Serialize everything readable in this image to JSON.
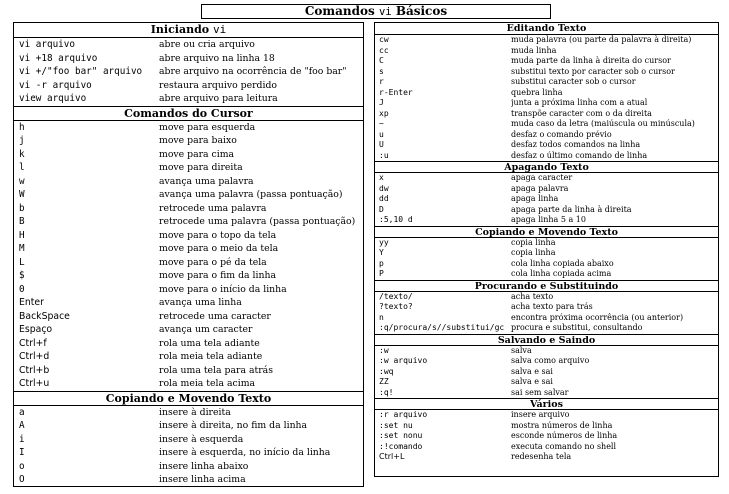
{
  "title": {
    "text": "Comandos",
    "mono": "vi",
    "rest": "Básicos"
  },
  "left_sections": [
    {
      "heading": "Iniciando",
      "heading_mono": "vi",
      "rows": [
        {
          "cmd": "vi arquivo",
          "desc": "abre ou cria arquivo"
        },
        {
          "cmd": "vi +18 arquivo",
          "desc": "abre arquivo na linha 18"
        },
        {
          "cmd": "vi +/\"foo bar\" arquivo",
          "desc": "abre arquivo na ocorrência de \"foo bar\""
        },
        {
          "cmd": "vi -r arquivo",
          "desc": "restaura arquivo perdido"
        },
        {
          "cmd": "view arquivo",
          "desc": "abre arquivo para leitura"
        }
      ]
    },
    {
      "heading": "Comandos do Cursor",
      "rows": [
        {
          "cmd": "h",
          "desc": "move para esquerda"
        },
        {
          "cmd": "j",
          "desc": "move para baixo"
        },
        {
          "cmd": "k",
          "desc": "move para cima"
        },
        {
          "cmd": "l",
          "desc": "move para direita"
        },
        {
          "cmd": "w",
          "desc": "avança uma palavra"
        },
        {
          "cmd": "W",
          "desc": "avança uma palavra (passa pontuação)"
        },
        {
          "cmd": "b",
          "desc": "retrocede uma palavra"
        },
        {
          "cmd": "B",
          "desc": "retrocede uma palavra (passa pontuação)"
        },
        {
          "cmd": "H",
          "desc": "move para o topo da tela"
        },
        {
          "cmd": "M",
          "desc": "move para o meio da tela"
        },
        {
          "cmd": "L",
          "desc": "move para o pé da tela"
        },
        {
          "cmd": "$",
          "desc": "move para o fim da linha"
        },
        {
          "cmd": "0",
          "desc": "move para o início da linha"
        },
        {
          "cmd": "Enter",
          "desc": "avança uma linha",
          "sans": true
        },
        {
          "cmd": "BackSpace",
          "desc": "retrocede uma caracter",
          "sans": true
        },
        {
          "cmd": "Espaço",
          "desc": "avança um caracter",
          "sans": true
        },
        {
          "cmd": "Ctrl+f",
          "desc": "rola uma tela adiante",
          "sans": true
        },
        {
          "cmd": "Ctrl+d",
          "desc": "rola meia tela adiante",
          "sans": true
        },
        {
          "cmd": "Ctrl+b",
          "desc": "rola uma tela para atrás",
          "sans": true
        },
        {
          "cmd": "Ctrl+u",
          "desc": "rola meia tela acima",
          "sans": true
        }
      ]
    },
    {
      "heading": "Copiando e Movendo Texto",
      "rows": [
        {
          "cmd": "a",
          "desc": "insere à direita"
        },
        {
          "cmd": "A",
          "desc": "insere à direita, no fim da linha"
        },
        {
          "cmd": "i",
          "desc": "insere à esquerda"
        },
        {
          "cmd": "I",
          "desc": "insere à esquerda, no início da linha"
        },
        {
          "cmd": "o",
          "desc": "insere linha abaixo"
        },
        {
          "cmd": "O",
          "desc": "insere linha acima"
        }
      ]
    }
  ],
  "right_sections": [
    {
      "heading": "Editando Texto",
      "rows": [
        {
          "cmd": "cw",
          "desc": "muda palavra (ou parte da palavra à direita)"
        },
        {
          "cmd": "cc",
          "desc": "muda linha"
        },
        {
          "cmd": "C",
          "desc": "muda parte da linha à direita do cursor"
        },
        {
          "cmd": "s",
          "desc": "substitui texto por caracter sob o cursor"
        },
        {
          "cmd": "r",
          "desc": "substitui caracter sob o cursor"
        },
        {
          "cmd": "r-Enter",
          "desc": "quebra linha"
        },
        {
          "cmd": "J",
          "desc": "junta a próxima linha com a atual"
        },
        {
          "cmd": "xp",
          "desc": "transpõe caracter com o da direita"
        },
        {
          "cmd": "~",
          "desc": "muda caso da letra (maiúscula ou minúscula)"
        },
        {
          "cmd": "u",
          "desc": "desfaz o comando prévio"
        },
        {
          "cmd": "U",
          "desc": "desfaz todos comandos na linha"
        },
        {
          "cmd": ":u",
          "desc": "desfaz o último comando de linha"
        }
      ]
    },
    {
      "heading": "Apagando Texto",
      "rows": [
        {
          "cmd": "x",
          "desc": "apaga caracter"
        },
        {
          "cmd": "dw",
          "desc": "apaga palavra"
        },
        {
          "cmd": "dd",
          "desc": "apaga linha"
        },
        {
          "cmd": "D",
          "desc": "apaga parte da linha à direita"
        },
        {
          "cmd": ":5,10 d",
          "desc": "apaga linha 5 a 10"
        }
      ]
    },
    {
      "heading": "Copiando e Movendo Texto",
      "rows": [
        {
          "cmd": "yy",
          "desc": "copia linha"
        },
        {
          "cmd": "Y",
          "desc": "copia linha"
        },
        {
          "cmd": "p",
          "desc": "cola linha copiada abaixo"
        },
        {
          "cmd": "P",
          "desc": "cola linha copiada acima"
        }
      ]
    },
    {
      "heading": "Procurando e Substituindo",
      "rows": [
        {
          "cmd": "/texto/",
          "desc": "acha texto"
        },
        {
          "cmd": "?texto?",
          "desc": "acha texto para trás"
        },
        {
          "cmd": "n",
          "desc": "encontra próxima ocorrência (ou anterior)"
        },
        {
          "cmd": ":q/procura/s//substitui/gc",
          "desc": "procura e substitui, consultando"
        }
      ]
    },
    {
      "heading": "Salvando e Saindo",
      "rows": [
        {
          "cmd": ":w",
          "desc": "salva"
        },
        {
          "cmd": ":w arquivo",
          "desc": "salva como arquivo"
        },
        {
          "cmd": ":wq",
          "desc": "salva e sai"
        },
        {
          "cmd": "ZZ",
          "desc": "salva e sai"
        },
        {
          "cmd": ":q!",
          "desc": "sai sem salvar"
        }
      ]
    },
    {
      "heading": "Vários",
      "rows": [
        {
          "cmd": ":r arquivo",
          "desc": "insere arquivo"
        },
        {
          "cmd": ":set nu",
          "desc": "mostra números de linha"
        },
        {
          "cmd": ":set nonu",
          "desc": "esconde números de linha"
        },
        {
          "cmd": ":!comando",
          "desc": "executa comando no shell"
        },
        {
          "cmd": "Ctrl+L",
          "desc": "redesenha tela",
          "sans": true
        }
      ]
    }
  ]
}
